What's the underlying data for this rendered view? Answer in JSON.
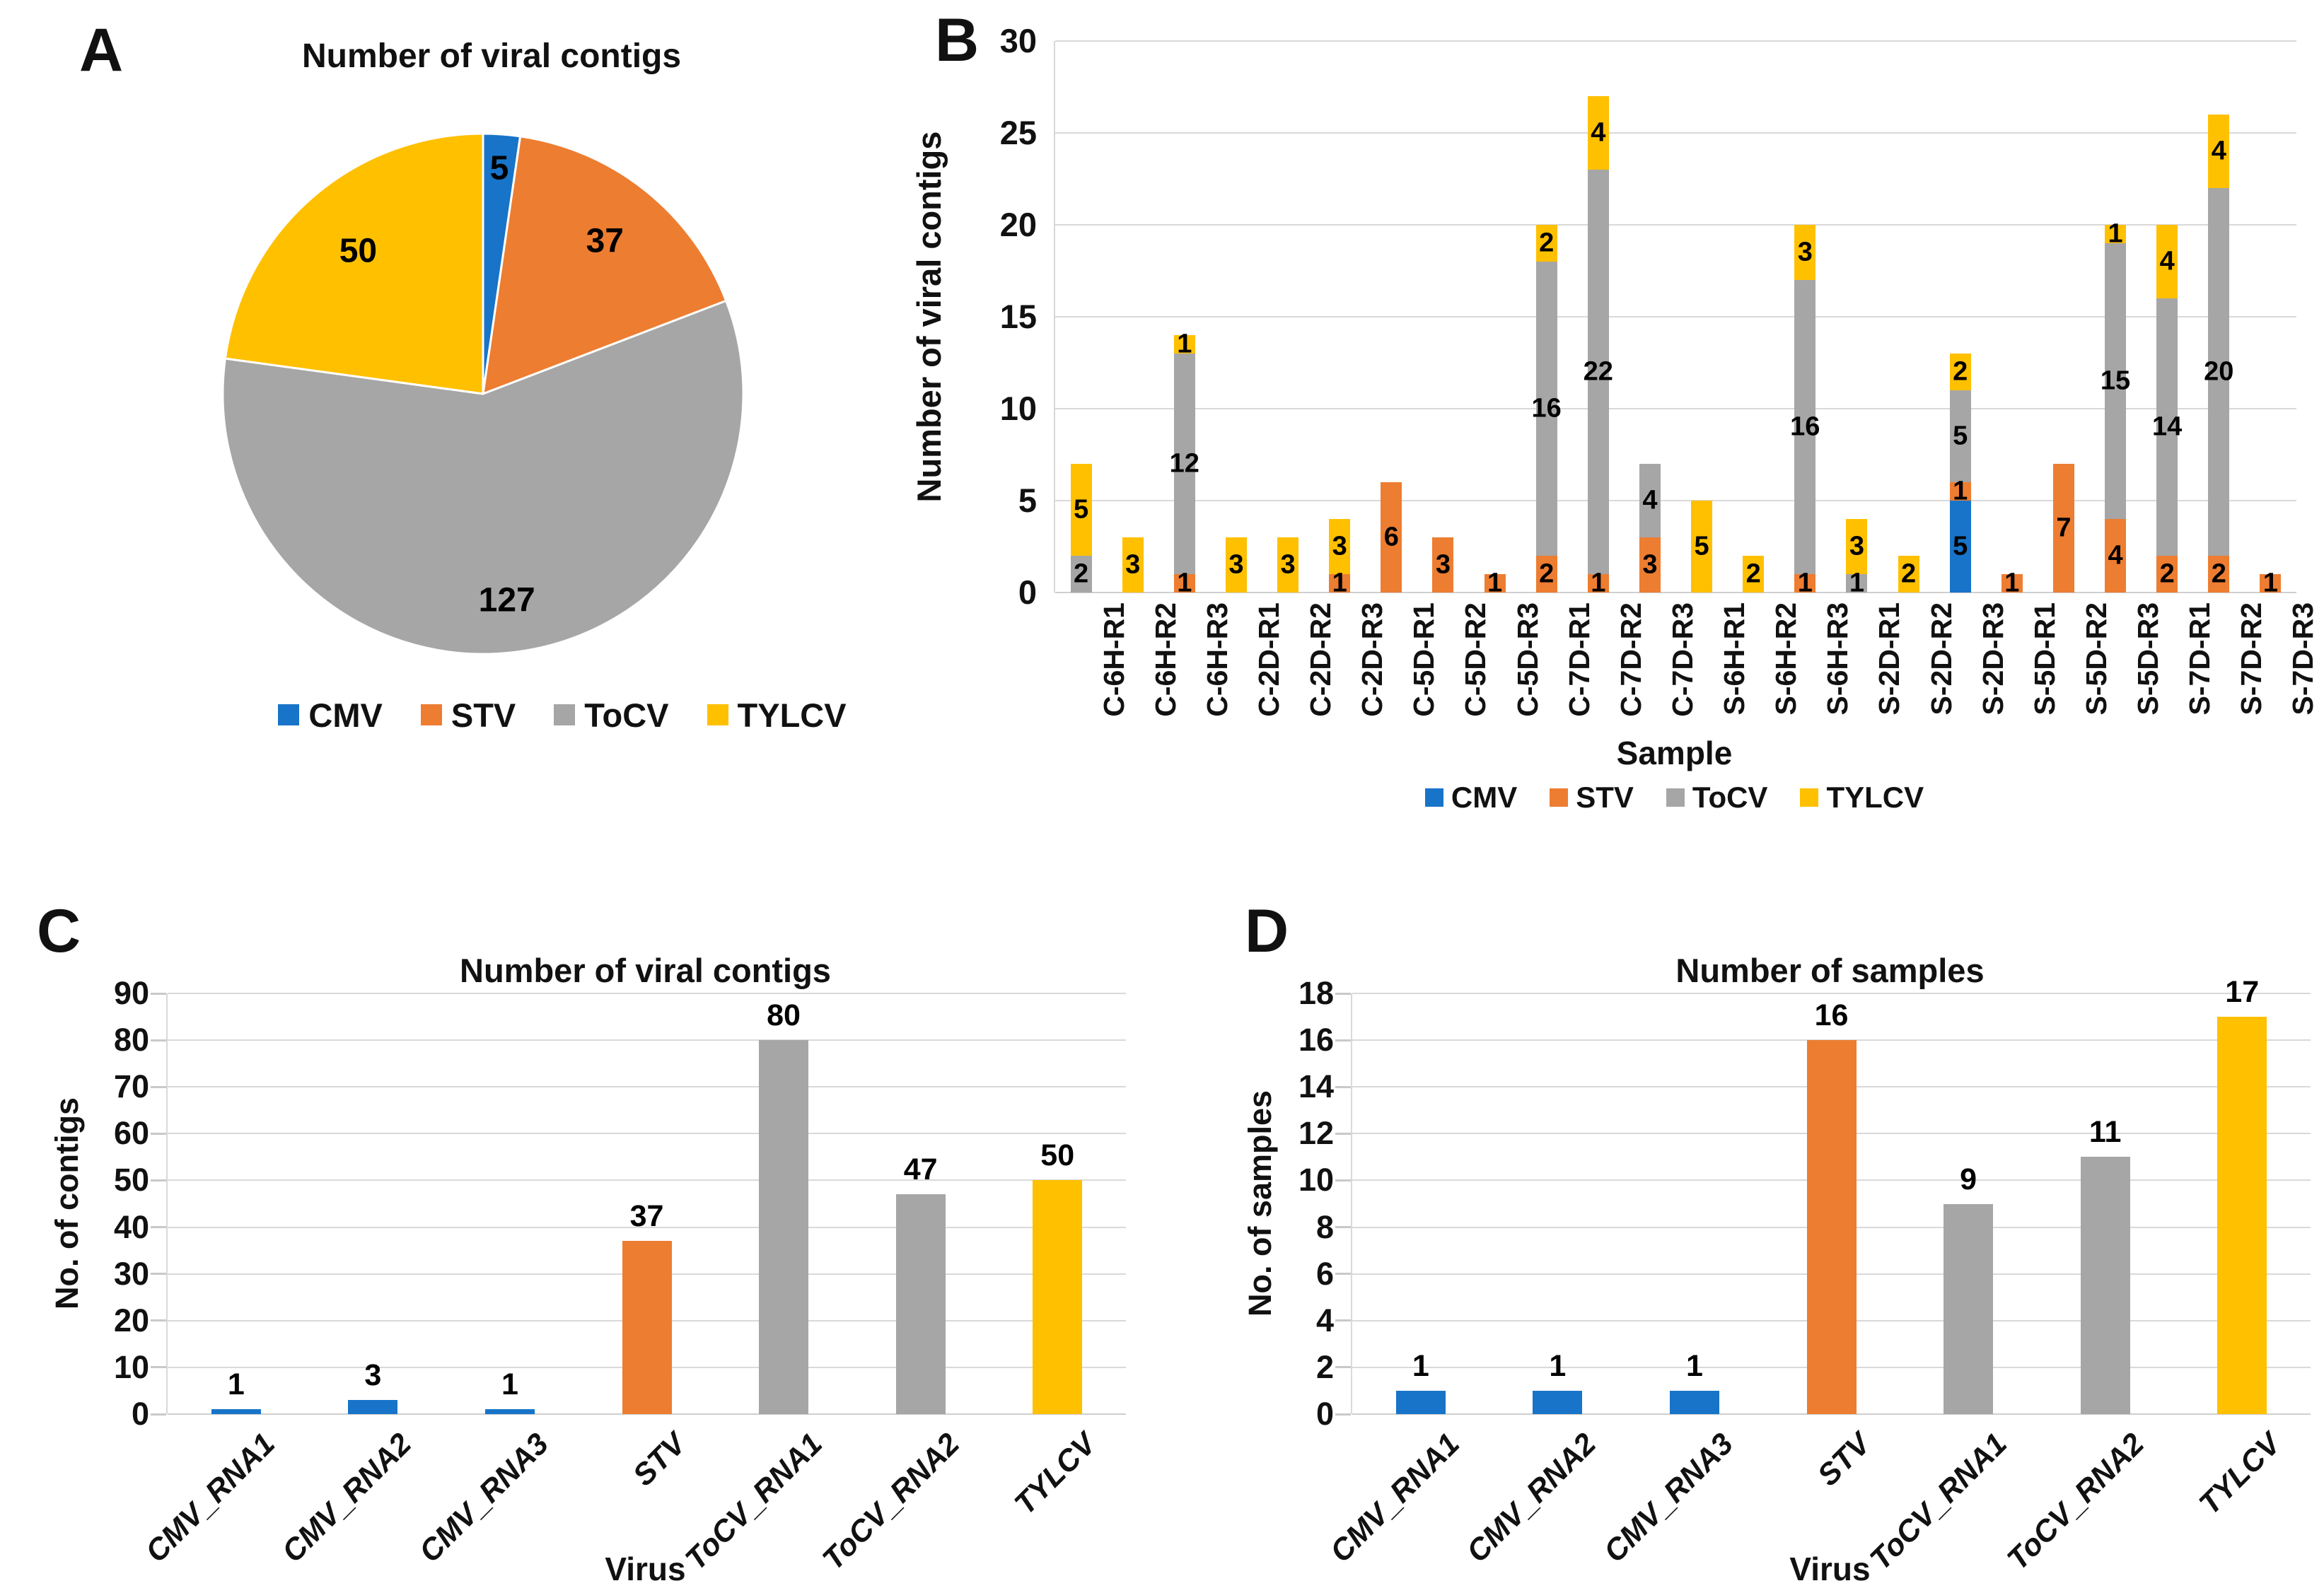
{
  "panel_letters": [
    "A",
    "B",
    "C",
    "D"
  ],
  "legend": [
    "CMV",
    "STV",
    "ToCV",
    "TYLCV"
  ],
  "colors": {
    "CMV": "#1874C8",
    "STV": "#ED7D31",
    "ToCV": "#A6A6A6",
    "TYLCV": "#FFC000"
  },
  "chart_data": [
    {
      "id": "A",
      "type": "pie",
      "title": "Number of viral contigs",
      "labels": [
        "CMV",
        "STV",
        "ToCV",
        "TYLCV"
      ],
      "values": [
        5,
        37,
        127,
        50
      ],
      "legend_position": "bottom"
    },
    {
      "id": "B",
      "type": "bar",
      "stacked": true,
      "title": "",
      "xlabel": "Sample",
      "ylabel": "Number of viral contigs",
      "ylim": [
        0,
        30
      ],
      "ytick_step": 5,
      "grid": true,
      "legend_position": "bottom",
      "categories": [
        "C-6H-R1",
        "C-6H-R2",
        "C-6H-R3",
        "C-2D-R1",
        "C-2D-R2",
        "C-2D-R3",
        "C-5D-R1",
        "C-5D-R2",
        "C-5D-R3",
        "C-7D-R1",
        "C-7D-R2",
        "C-7D-R3",
        "S-6H-R1",
        "S-6H-R2",
        "S-6H-R3",
        "S-2D-R1",
        "S-2D-R2",
        "S-2D-R3",
        "S-5D-R1",
        "S-5D-R2",
        "S-5D-R3",
        "S-7D-R1",
        "S-7D-R2",
        "S-7D-R3"
      ],
      "series": [
        {
          "name": "CMV",
          "values": [
            0,
            0,
            0,
            0,
            0,
            0,
            0,
            0,
            0,
            0,
            0,
            0,
            0,
            0,
            0,
            0,
            0,
            5,
            0,
            0,
            0,
            0,
            0,
            0
          ]
        },
        {
          "name": "STV",
          "values": [
            0,
            0,
            1,
            0,
            0,
            1,
            6,
            3,
            1,
            2,
            1,
            3,
            0,
            0,
            1,
            0,
            0,
            1,
            1,
            7,
            4,
            2,
            2,
            1
          ]
        },
        {
          "name": "ToCV",
          "values": [
            2,
            0,
            12,
            0,
            0,
            0,
            0,
            0,
            0,
            16,
            22,
            4,
            0,
            0,
            16,
            1,
            0,
            5,
            0,
            0,
            15,
            14,
            20,
            0
          ]
        },
        {
          "name": "TYLCV",
          "values": [
            5,
            3,
            1,
            3,
            3,
            3,
            0,
            0,
            0,
            2,
            4,
            0,
            5,
            2,
            3,
            3,
            2,
            2,
            0,
            0,
            1,
            4,
            4,
            0
          ]
        }
      ]
    },
    {
      "id": "C",
      "type": "bar",
      "title": "Number of viral contigs",
      "xlabel": "Virus",
      "ylabel": "No. of contigs",
      "ylim": [
        0,
        90
      ],
      "ytick_step": 10,
      "grid": true,
      "categories": [
        "CMV_RNA1",
        "CMV_RNA2",
        "CMV_RNA3",
        "STV",
        "ToCV_RNA1",
        "ToCV_RNA2",
        "TYLCV"
      ],
      "values": [
        1,
        3,
        1,
        37,
        80,
        47,
        50
      ],
      "bar_color_keys": [
        "CMV",
        "CMV",
        "CMV",
        "STV",
        "ToCV",
        "ToCV",
        "TYLCV"
      ]
    },
    {
      "id": "D",
      "type": "bar",
      "title": "Number of samples",
      "xlabel": "Virus",
      "ylabel": "No. of samples",
      "ylim": [
        0,
        18
      ],
      "ytick_step": 2,
      "grid": true,
      "categories": [
        "CMV_RNA1",
        "CMV_RNA2",
        "CMV_RNA3",
        "STV",
        "ToCV_RNA1",
        "ToCV_RNA2",
        "TYLCV"
      ],
      "values": [
        1,
        1,
        1,
        16,
        9,
        11,
        17
      ],
      "bar_color_keys": [
        "CMV",
        "CMV",
        "CMV",
        "STV",
        "ToCV",
        "ToCV",
        "TYLCV"
      ]
    }
  ]
}
